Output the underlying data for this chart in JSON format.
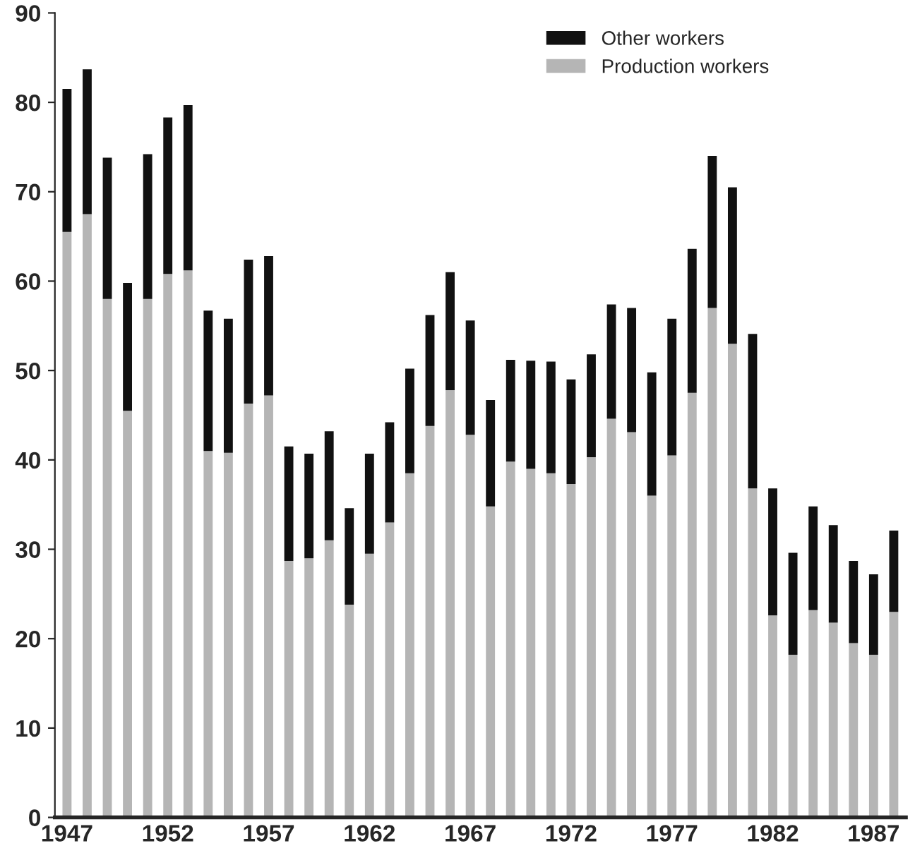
{
  "chart_data": {
    "type": "bar",
    "stacked": true,
    "grid": false,
    "legend": "top right",
    "categories": [
      "1947",
      null,
      null,
      null,
      null,
      "1952",
      null,
      null,
      null,
      null,
      "1957",
      null,
      null,
      null,
      null,
      "1962",
      null,
      null,
      null,
      null,
      "1967",
      null,
      null,
      null,
      null,
      "1972",
      null,
      null,
      null,
      null,
      "1977",
      null,
      null,
      null,
      null,
      "1982",
      null,
      null,
      null,
      null,
      "1987",
      null
    ],
    "ylim": [
      0,
      90
    ],
    "yticks": [
      0,
      10,
      20,
      30,
      40,
      50,
      60,
      70,
      80,
      90
    ],
    "series": [
      {
        "name": "Production workers",
        "color": "#b5b5b5",
        "values": [
          65.5,
          67.5,
          58,
          45.5,
          58,
          60.8,
          61.2,
          41,
          40.8,
          46.3,
          47.2,
          28.7,
          29,
          31,
          23.8,
          29.5,
          33,
          38.5,
          43.8,
          47.8,
          42.8,
          34.8,
          39.8,
          39,
          38.5,
          37.3,
          40.3,
          44.6,
          43.1,
          36,
          40.5,
          47.5,
          57,
          53,
          36.8,
          22.6,
          18.2,
          23.2,
          21.8,
          19.5,
          18.2,
          23
        ]
      },
      {
        "name": "Other workers",
        "color": "#111111",
        "values": [
          16.0,
          16.2,
          15.8,
          14.3,
          16.2,
          17.5,
          18.5,
          15.7,
          15.0,
          16.1,
          15.6,
          12.8,
          11.7,
          12.2,
          10.8,
          11.2,
          11.2,
          11.7,
          12.4,
          13.2,
          12.8,
          11.9,
          11.4,
          12.1,
          12.5,
          11.7,
          11.5,
          12.8,
          13.9,
          13.8,
          15.3,
          16.1,
          17.0,
          17.5,
          17.3,
          14.2,
          11.4,
          11.6,
          10.9,
          9.2,
          9.0,
          9.1
        ]
      }
    ]
  }
}
